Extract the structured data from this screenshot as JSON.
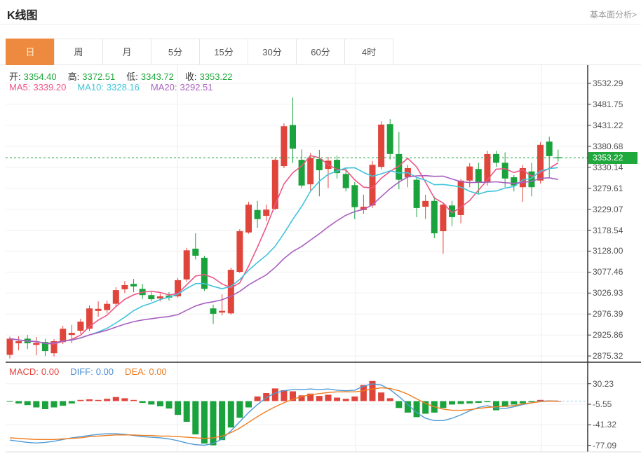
{
  "header": {
    "title": "K线图",
    "link_label": "基本面分析>"
  },
  "tabs": [
    {
      "key": "day",
      "label": "日",
      "active": true
    },
    {
      "key": "week",
      "label": "周",
      "active": false
    },
    {
      "key": "month",
      "label": "月",
      "active": false
    },
    {
      "key": "m5",
      "label": "5分",
      "active": false
    },
    {
      "key": "m15",
      "label": "15分",
      "active": false
    },
    {
      "key": "m30",
      "label": "30分",
      "active": false
    },
    {
      "key": "m60",
      "label": "60分",
      "active": false
    },
    {
      "key": "h4",
      "label": "4时",
      "active": false
    }
  ],
  "kline_legend": {
    "ohlc": [
      {
        "key": "open",
        "label": "开:",
        "value": "3354.40"
      },
      {
        "key": "high",
        "label": "高:",
        "value": "3372.51"
      },
      {
        "key": "low",
        "label": "低:",
        "value": "3343.72"
      },
      {
        "key": "close",
        "label": "收:",
        "value": "3353.22"
      }
    ],
    "ma": [
      {
        "key": "ma5",
        "label": "MA5:",
        "value": "3339.20",
        "color": "#ee5585"
      },
      {
        "key": "ma10",
        "label": "MA10:",
        "value": "3328.16",
        "color": "#41c4da"
      },
      {
        "key": "ma20",
        "label": "MA20:",
        "value": "3292.51",
        "color": "#a95fc0"
      }
    ]
  },
  "macd_legend": [
    {
      "key": "macd",
      "label": "MACD:",
      "value": "0.00",
      "color": "#e2443c"
    },
    {
      "key": "diff",
      "label": "DIFF:",
      "value": "0.00",
      "color": "#4a8fd3"
    },
    {
      "key": "dea",
      "label": "DEA:",
      "value": "0.00",
      "color": "#f07d22"
    }
  ],
  "colors": {
    "up": "#e0453c",
    "down": "#1aa23c",
    "ohlc_value": "#1fa83c",
    "ma5": "#ee5585",
    "ma10": "#41c4da",
    "ma20": "#a95fc0",
    "diff_line": "#4e9ad5",
    "dea_line": "#ef7d1f",
    "grid": "#f0f0f0",
    "vgrid": "#ededed",
    "axis": "#333333",
    "price_line": "#22a53c",
    "zero_dash": "#90c9e8",
    "badge_bg": "#1fa83c"
  },
  "chart_data": {
    "type": "candlestick",
    "title": "K线图",
    "panels": [
      "price",
      "macd"
    ],
    "grid": true,
    "legend_position": "top-left",
    "current_price": 3353.22,
    "current_price_label": "3353.22",
    "y_axis_main_labels": [
      "3532.29",
      "3481.75",
      "3431.22",
      "3380.68",
      "3330.14",
      "3279.61",
      "3229.07",
      "3178.54",
      "3128.00",
      "3077.46",
      "3026.93",
      "2976.39",
      "2925.86",
      "2875.32"
    ],
    "y_axis_main_range": [
      2875.32,
      3532.29
    ],
    "y_axis_macd_labels": [
      "30.23",
      "-5.55",
      "-41.32",
      "-77.09"
    ],
    "ma_periods": [
      5,
      10,
      20
    ],
    "candles_ohlc": [
      [
        2878,
        2922,
        2869,
        2917
      ],
      [
        2906,
        2923,
        2889,
        2911
      ],
      [
        2917,
        2926,
        2892,
        2906
      ],
      [
        2902,
        2921,
        2877,
        2907
      ],
      [
        2909,
        2917,
        2875,
        2887
      ],
      [
        2882,
        2916,
        2874,
        2911
      ],
      [
        2909,
        2948,
        2904,
        2941
      ],
      [
        2926,
        2950,
        2906,
        2931
      ],
      [
        2936,
        2965,
        2929,
        2958
      ],
      [
        2941,
        2997,
        2936,
        2990
      ],
      [
        2984,
        3007,
        2970,
        2989
      ],
      [
        2986,
        3009,
        2978,
        3001
      ],
      [
        3001,
        3041,
        2996,
        3034
      ],
      [
        3036,
        3056,
        3027,
        3046
      ],
      [
        3049,
        3061,
        3029,
        3043
      ],
      [
        3037,
        3049,
        3012,
        3022
      ],
      [
        3022,
        3029,
        3007,
        3012
      ],
      [
        3014,
        3026,
        3007,
        3019
      ],
      [
        3021,
        3029,
        3009,
        3016
      ],
      [
        3019,
        3063,
        3016,
        3058
      ],
      [
        3060,
        3136,
        3055,
        3130
      ],
      [
        3134,
        3171,
        3108,
        3117
      ],
      [
        3112,
        3117,
        3032,
        3037
      ],
      [
        2990,
        2999,
        2953,
        2977
      ],
      [
        2980,
        3024,
        2973,
        2984
      ],
      [
        2978,
        3088,
        2975,
        3083
      ],
      [
        3078,
        3181,
        3075,
        3176
      ],
      [
        3173,
        3247,
        3170,
        3240
      ],
      [
        3227,
        3249,
        3184,
        3205
      ],
      [
        3213,
        3240,
        3201,
        3228
      ],
      [
        3230,
        3353,
        3227,
        3348
      ],
      [
        3333,
        3436,
        3328,
        3429
      ],
      [
        3432,
        3498,
        3340,
        3375
      ],
      [
        3348,
        3373,
        3280,
        3286
      ],
      [
        3289,
        3365,
        3274,
        3353
      ],
      [
        3350,
        3372,
        3260,
        3323
      ],
      [
        3326,
        3355,
        3280,
        3346
      ],
      [
        3348,
        3358,
        3303,
        3316
      ],
      [
        3314,
        3328,
        3272,
        3280
      ],
      [
        3287,
        3294,
        3205,
        3234
      ],
      [
        3227,
        3264,
        3218,
        3235
      ],
      [
        3238,
        3345,
        3232,
        3336
      ],
      [
        3331,
        3441,
        3325,
        3433
      ],
      [
        3434,
        3446,
        3349,
        3362
      ],
      [
        3362,
        3415,
        3277,
        3300
      ],
      [
        3306,
        3336,
        3282,
        3328
      ],
      [
        3300,
        3306,
        3210,
        3232
      ],
      [
        3235,
        3264,
        3205,
        3249
      ],
      [
        3249,
        3260,
        3159,
        3171
      ],
      [
        3176,
        3245,
        3122,
        3240
      ],
      [
        3238,
        3249,
        3188,
        3210
      ],
      [
        3215,
        3302,
        3195,
        3298
      ],
      [
        3298,
        3340,
        3282,
        3332
      ],
      [
        3326,
        3341,
        3265,
        3295
      ],
      [
        3294,
        3370,
        3286,
        3362
      ],
      [
        3362,
        3370,
        3331,
        3341
      ],
      [
        3341,
        3366,
        3282,
        3303
      ],
      [
        3306,
        3311,
        3272,
        3286
      ],
      [
        3282,
        3336,
        3247,
        3328
      ],
      [
        3320,
        3341,
        3260,
        3282
      ],
      [
        3298,
        3391,
        3291,
        3384
      ],
      [
        3392,
        3404,
        3306,
        3357
      ],
      [
        3354.4,
        3372.51,
        3343.72,
        3353.22
      ]
    ],
    "macd": {
      "histogram": [
        -1,
        -4,
        -7,
        -11,
        -14,
        -11,
        -8,
        -4,
        2,
        3,
        2,
        4,
        7,
        5,
        2,
        -3,
        -6,
        -9,
        -13,
        -24,
        -36,
        -58,
        -74,
        -77,
        -68,
        -46,
        -29,
        -11,
        8,
        14,
        22,
        19,
        17,
        10,
        13,
        9,
        11,
        6,
        4,
        8,
        28,
        35,
        15,
        5,
        -12,
        -20,
        -28,
        -22,
        -20,
        -12,
        -6,
        -5,
        -4,
        -3,
        -2,
        -16,
        -10,
        -6,
        -4,
        -2,
        2,
        1,
        0
      ],
      "diff": [
        -68,
        -70,
        -72,
        -73,
        -72,
        -70,
        -67,
        -64,
        -62,
        -60,
        -58,
        -57,
        -57,
        -58,
        -60,
        -62,
        -63,
        -64,
        -66,
        -69,
        -73,
        -76,
        -77,
        -74,
        -66,
        -52,
        -36,
        -20,
        -6,
        6,
        14,
        18,
        20,
        20,
        21,
        20,
        21,
        19,
        18,
        19,
        26,
        30,
        28,
        20,
        8,
        -6,
        -20,
        -30,
        -34,
        -34,
        -30,
        -24,
        -17,
        -11,
        -8,
        -12,
        -13,
        -10,
        -6,
        -3,
        0,
        0,
        0
      ],
      "dea": [
        -64,
        -65,
        -66,
        -67,
        -67,
        -67,
        -66,
        -65,
        -64,
        -62,
        -61,
        -60,
        -59,
        -59,
        -59,
        -60,
        -60,
        -61,
        -61,
        -62,
        -63,
        -64,
        -65,
        -64,
        -61,
        -55,
        -47,
        -37,
        -27,
        -18,
        -10,
        -3,
        3,
        8,
        11,
        13,
        15,
        16,
        16,
        16,
        18,
        21,
        23,
        22,
        18,
        12,
        4,
        -4,
        -10,
        -14,
        -16,
        -16,
        -15,
        -13,
        -11,
        -10,
        -9,
        -8,
        -5,
        -3,
        -1,
        0,
        0
      ]
    }
  }
}
